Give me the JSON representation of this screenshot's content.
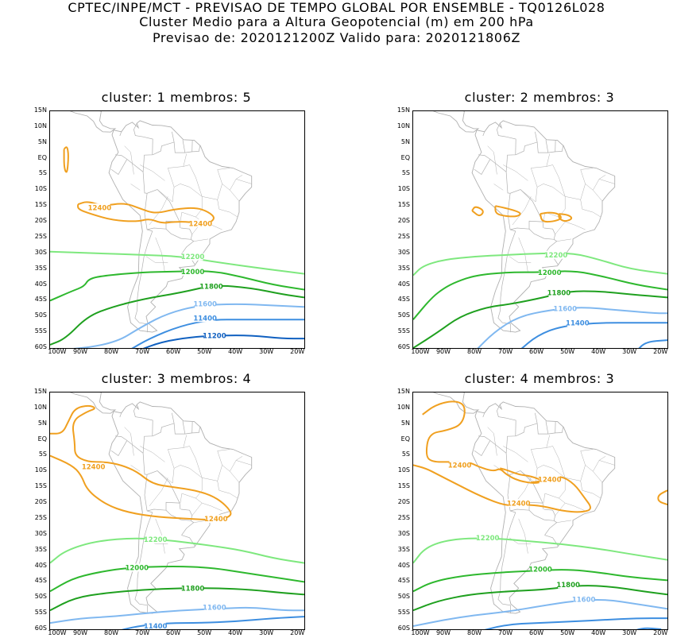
{
  "header": {
    "line1": "CPTEC/INPE/MCT - PREVISAO DE TEMPO GLOBAL POR ENSEMBLE - TQ0126L028",
    "line2": "Cluster Medio para a Altura Geopotencial (m) em 200 hPa",
    "line3": "Previsao de: 2020121200Z   Valido para: 2020121806Z"
  },
  "axes": {
    "lat_labels": [
      "15N",
      "10N",
      "5N",
      "EQ",
      "5S",
      "10S",
      "15S",
      "20S",
      "25S",
      "30S",
      "35S",
      "40S",
      "45S",
      "50S",
      "55S",
      "60S"
    ],
    "lon_labels": [
      "100W",
      "90W",
      "80W",
      "70W",
      "60W",
      "50W",
      "40W",
      "30W",
      "20W"
    ]
  },
  "colors": {
    "c12400": "#f0a020",
    "c12200": "#7ee87e",
    "c12000": "#2eb82e",
    "c11800": "#1fa01f",
    "c11600": "#80b8f0",
    "c11400": "#3d8ee0",
    "c11200": "#1060c0",
    "land": "#b0b0b0"
  },
  "panels": [
    {
      "title": "cluster: 1   membros: 5",
      "contour_labels": [
        "12400",
        "12400",
        "12200",
        "12000",
        "11800",
        "11600",
        "11400",
        "11200"
      ]
    },
    {
      "title": "cluster: 2   membros: 3",
      "contour_labels": [
        "12200",
        "12000",
        "11800",
        "11600",
        "11400"
      ]
    },
    {
      "title": "cluster: 3   membros: 4",
      "contour_labels": [
        "12400",
        "12400",
        "12200",
        "12000",
        "11800",
        "11600",
        "11400"
      ]
    },
    {
      "title": "cluster: 4   membros: 3",
      "contour_labels": [
        "12400",
        "12400",
        "12400",
        "12200",
        "12000",
        "11800",
        "11600"
      ]
    }
  ]
}
